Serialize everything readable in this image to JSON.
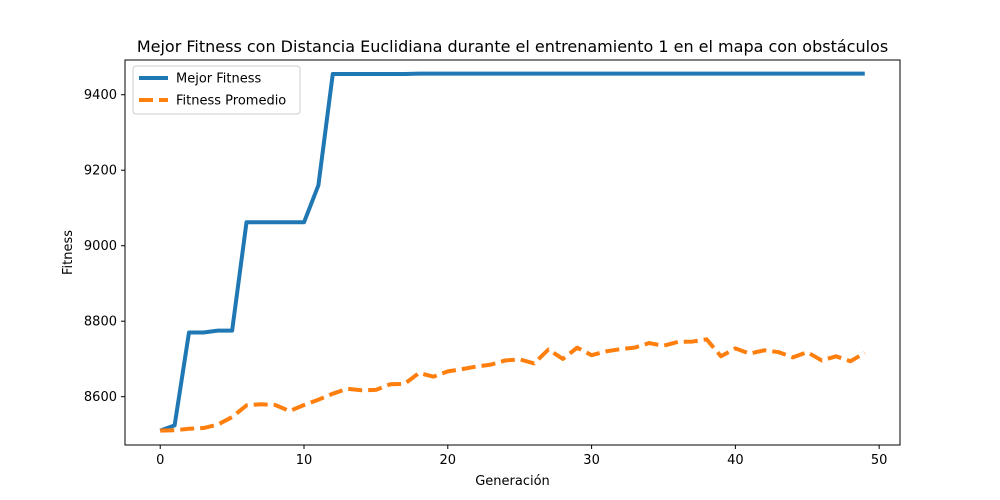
{
  "chart_data": {
    "type": "line",
    "title": "Mejor Fitness con Distancia Euclidiana durante el entrenamiento 1 en el mapa con obstáculos",
    "xlabel": "Generación",
    "ylabel": "Fitness",
    "xlim": [
      -2.45,
      51.45
    ],
    "ylim": [
      8472,
      9492
    ],
    "xticks": [
      0,
      10,
      20,
      30,
      40,
      50
    ],
    "yticks": [
      8600,
      8800,
      9000,
      9200,
      9400
    ],
    "grid": false,
    "legend_position": "upper-left",
    "x": [
      0,
      1,
      2,
      3,
      4,
      5,
      6,
      7,
      8,
      9,
      10,
      11,
      12,
      13,
      14,
      15,
      16,
      17,
      18,
      19,
      20,
      21,
      22,
      23,
      24,
      25,
      26,
      27,
      28,
      29,
      30,
      31,
      32,
      33,
      34,
      35,
      36,
      37,
      38,
      39,
      40,
      41,
      42,
      43,
      44,
      45,
      46,
      47,
      48,
      49
    ],
    "series": [
      {
        "name": "Mejor Fitness",
        "color": "#1f77b4",
        "style": "solid",
        "values": [
          8510,
          8524,
          8770,
          8770,
          8775,
          8775,
          9062,
          9062,
          9062,
          9062,
          9062,
          9160,
          9455,
          9455,
          9455,
          9455,
          9455,
          9455,
          9456,
          9456,
          9456,
          9456,
          9456,
          9456,
          9456,
          9456,
          9456,
          9456,
          9456,
          9456,
          9456,
          9456,
          9456,
          9456,
          9456,
          9456,
          9456,
          9456,
          9456,
          9456,
          9456,
          9456,
          9456,
          9456,
          9456,
          9456,
          9456,
          9456,
          9456,
          9456
        ]
      },
      {
        "name": "Fitness Promedio",
        "color": "#ff7f0e",
        "style": "dashed",
        "values": [
          8510,
          8511,
          8515,
          8517,
          8526,
          8546,
          8577,
          8580,
          8578,
          8562,
          8578,
          8592,
          8608,
          8621,
          8617,
          8618,
          8633,
          8634,
          8663,
          8653,
          8667,
          8673,
          8680,
          8685,
          8696,
          8699,
          8688,
          8725,
          8700,
          8730,
          8710,
          8720,
          8726,
          8730,
          8742,
          8735,
          8745,
          8746,
          8752,
          8707,
          8728,
          8714,
          8723,
          8718,
          8704,
          8718,
          8696,
          8707,
          8694,
          8716
        ]
      }
    ]
  }
}
